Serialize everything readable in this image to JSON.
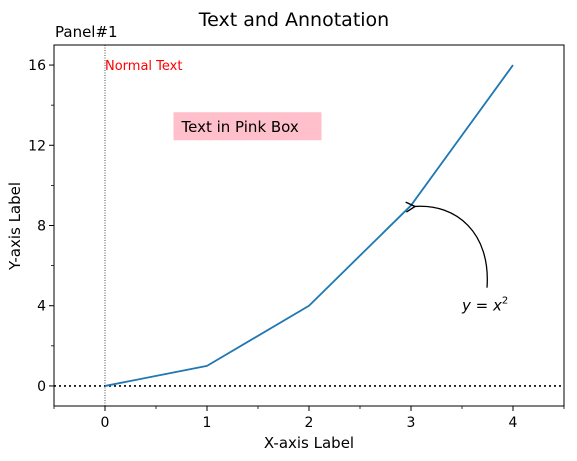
{
  "chart_data": {
    "type": "line",
    "title": "Text and Annotation",
    "panel_label": "Panel#1",
    "xlabel": "X-axis Label",
    "ylabel": "Y-axis Label",
    "xlim": [
      -0.5,
      4.5
    ],
    "ylim": [
      -1,
      17
    ],
    "x_ticks": [
      0,
      1,
      2,
      3,
      4
    ],
    "x_tick_labels": [
      "0",
      "1",
      "2",
      "3",
      "4"
    ],
    "y_ticks": [
      0,
      4,
      8,
      12,
      16
    ],
    "y_tick_labels": [
      "0",
      "4",
      "8",
      "12",
      "16"
    ],
    "x_minor_ticks": [
      -0.5,
      0.5,
      1.5,
      2.5,
      3.5,
      4.5
    ],
    "y_minor_ticks": [
      2,
      6,
      10,
      14
    ],
    "grid": false,
    "series": [
      {
        "x": [
          0,
          1,
          2,
          3,
          4
        ],
        "y": [
          0,
          1,
          4,
          9,
          16
        ],
        "color": "#1f77b4"
      }
    ],
    "reference_lines": {
      "horizontal": {
        "y": 0,
        "color": "#000000",
        "style": "dotted"
      },
      "vertical": {
        "x": 0,
        "color": "#000000",
        "style": "dotted"
      }
    },
    "annotations": [
      {
        "text": "Normal Text",
        "x": 0,
        "y": 16,
        "color": "#ff0000"
      },
      {
        "text": "Text in Pink Box",
        "x": 0.75,
        "y": 12.8,
        "box_color": "#ffc0cb",
        "color": "#000000"
      },
      {
        "text_parts": [
          "y = x",
          "2"
        ],
        "x": 3.5,
        "y": 4,
        "arrow_to": [
          3,
          9
        ]
      }
    ]
  }
}
